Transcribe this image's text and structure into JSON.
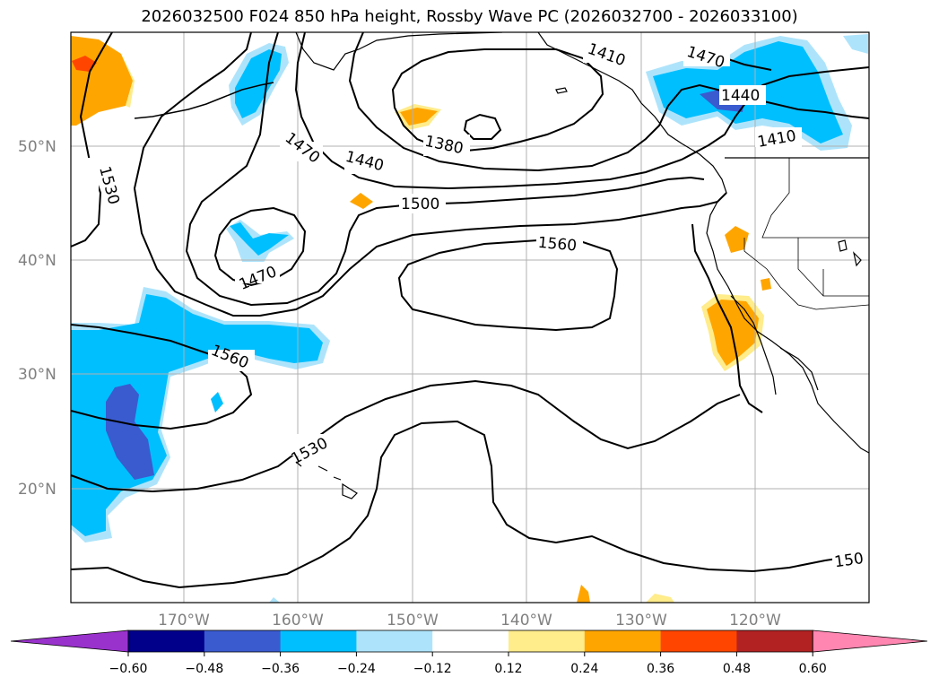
{
  "title": "2026032500 F024 850 hPa height, Rossby Wave PC (2026032700 - 2026033100)",
  "lat_labels": [
    "50°N",
    "40°N",
    "30°N",
    "20°N"
  ],
  "lon_labels": [
    "170°W",
    "160°W",
    "150°W",
    "140°W",
    "130°W",
    "120°W"
  ],
  "contour_labels": [
    "1410",
    "1470",
    "1440",
    "1410",
    "1530",
    "1470",
    "1380",
    "1440",
    "1500",
    "1470",
    "1560",
    "1560",
    "1530",
    "150"
  ],
  "colorbar": {
    "ticks": [
      "−0.60",
      "−0.48",
      "−0.36",
      "−0.24",
      "−0.12",
      "0.12",
      "0.24",
      "0.36",
      "0.48",
      "0.60"
    ],
    "colors": [
      "#9932cc",
      "#00008b",
      "#3a5bd0",
      "#00bfff",
      "#aee4fb",
      "#ffffff",
      "#ffec8b",
      "#ffa500",
      "#ff4500",
      "#b22222",
      "#ff86b0"
    ]
  },
  "shading_colors": {
    "strong_negative": "#3a5bd0",
    "negative": "#00bfff",
    "weak_negative": "#aee4fb",
    "weak_positive": "#ffec8b",
    "positive": "#ffa500",
    "strong_positive": "#ff4500"
  }
}
